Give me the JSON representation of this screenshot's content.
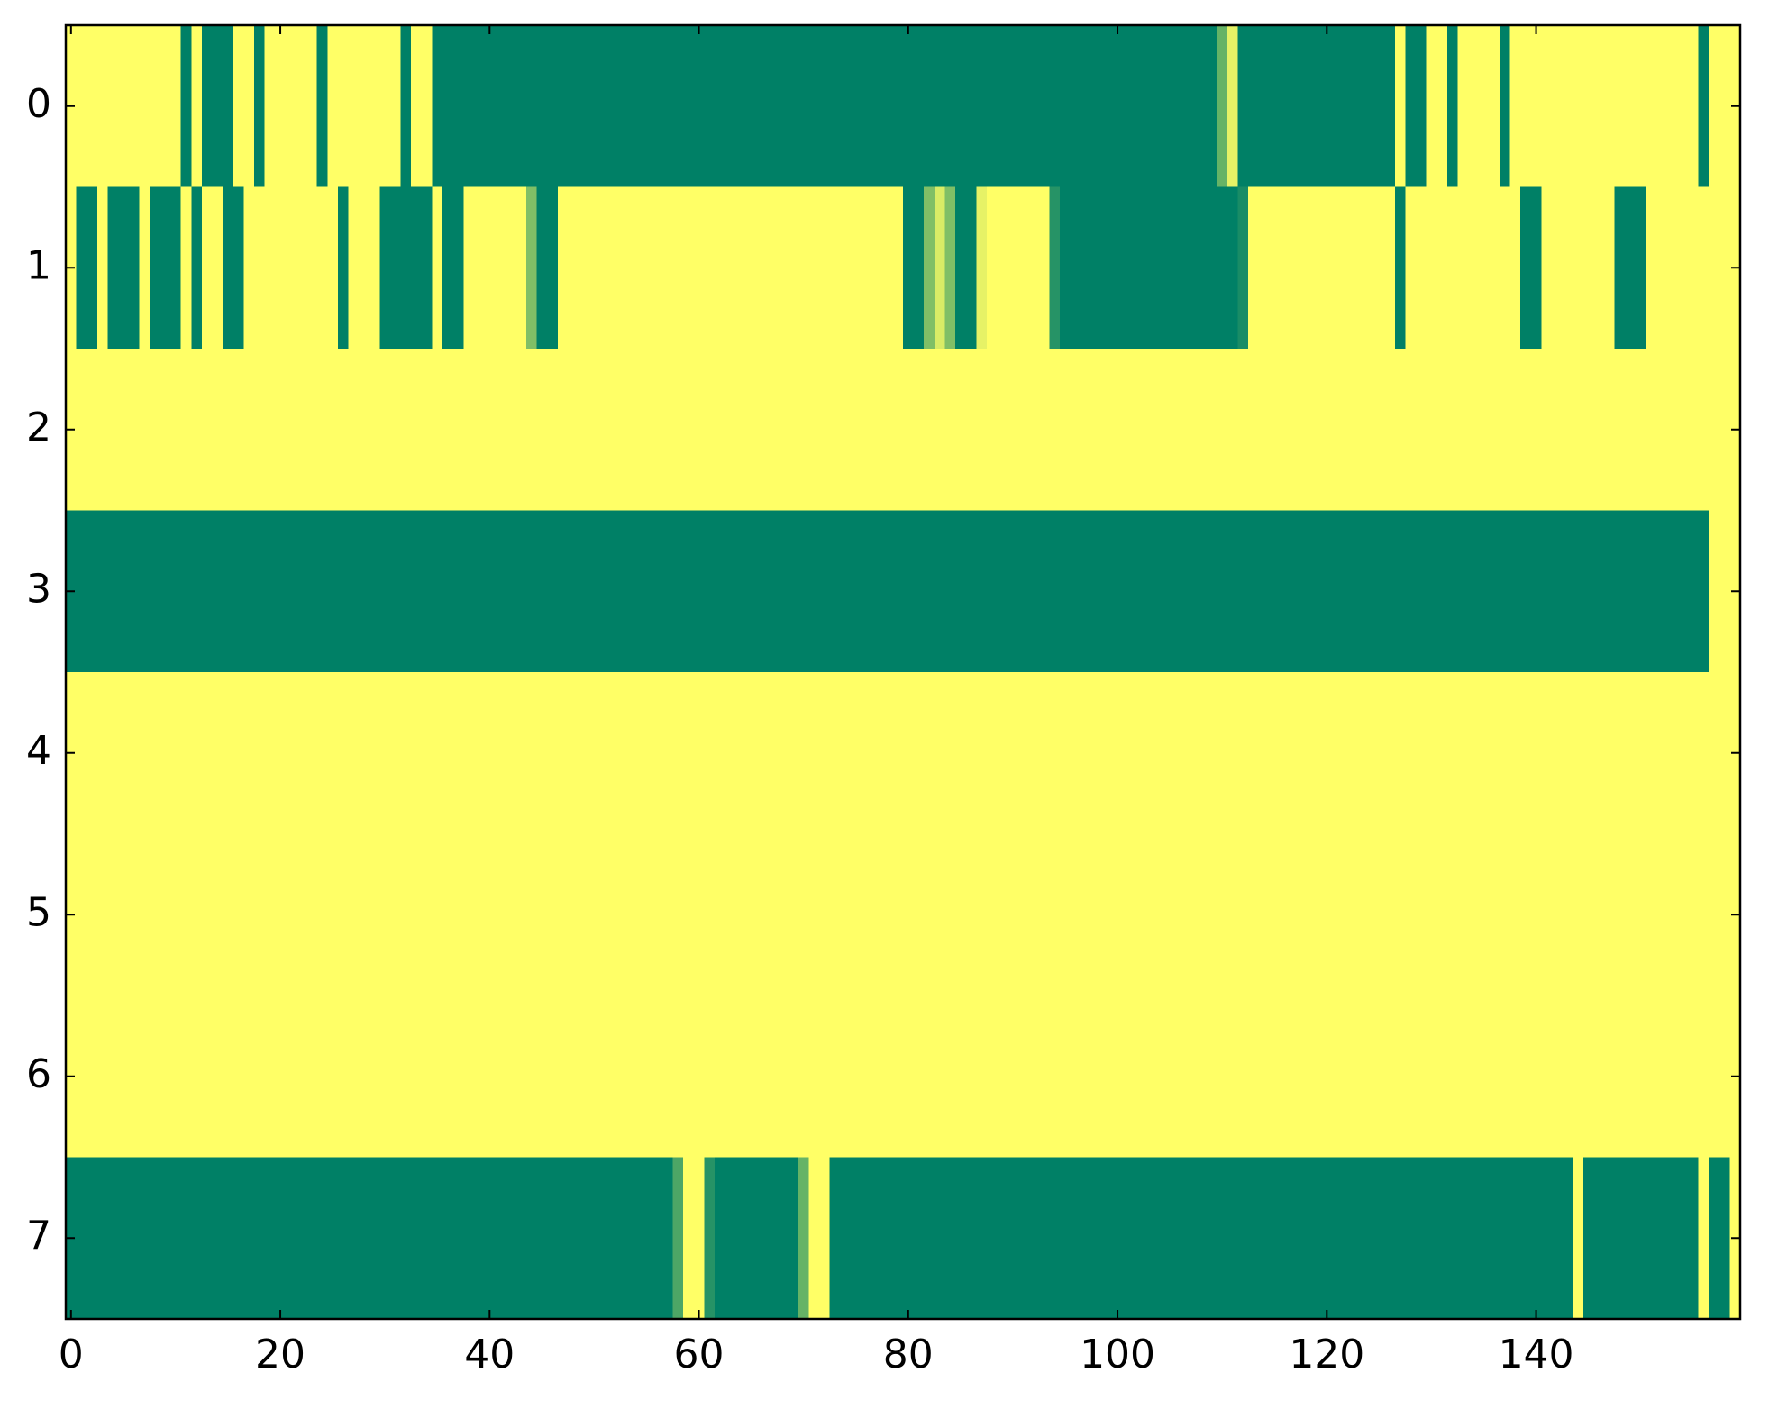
{
  "chart_data": {
    "type": "heatmap",
    "colormap": "summer_r",
    "xlim": [
      -0.5,
      159.5
    ],
    "ylim": [
      7.5,
      -0.5
    ],
    "xticks": [
      0,
      20,
      40,
      60,
      80,
      100,
      120,
      140
    ],
    "yticks": [
      0,
      1,
      2,
      3,
      4,
      5,
      6,
      7
    ],
    "z": [
      [
        0,
        0,
        0,
        0,
        0,
        0,
        0,
        0,
        0,
        0,
        0,
        1,
        0,
        1,
        1,
        1,
        0,
        0,
        1,
        0,
        0,
        0,
        0,
        0,
        1,
        0,
        0,
        0,
        0,
        0,
        0,
        0,
        1,
        0,
        0,
        1,
        1,
        1,
        1,
        1,
        1,
        1,
        1,
        1,
        1,
        1,
        1,
        1,
        1,
        1,
        1,
        1,
        1,
        1,
        1,
        1,
        1,
        1,
        1,
        1,
        1,
        1,
        1,
        1,
        1,
        1,
        1,
        1,
        1,
        1,
        1,
        1,
        1,
        1,
        1,
        1,
        1,
        1,
        1,
        1,
        1,
        1,
        1,
        1,
        1,
        1,
        1,
        1,
        1,
        1,
        1,
        1,
        1,
        1,
        1,
        1,
        1,
        1,
        1,
        1,
        1,
        1,
        1,
        1,
        1,
        1,
        1,
        1,
        1,
        1,
        0.6,
        0.1,
        1,
        1,
        1,
        1,
        1,
        1,
        1,
        1,
        1,
        1,
        1,
        1,
        1,
        1,
        1,
        0,
        1,
        1,
        0,
        0,
        1,
        0,
        0,
        0,
        0,
        1,
        0,
        0,
        0,
        0,
        0,
        0,
        0,
        0,
        0,
        0,
        0,
        0,
        0,
        0,
        0,
        0,
        0,
        0,
        1,
        0,
        0,
        0
      ],
      [
        0,
        1,
        1,
        0,
        1,
        1,
        1,
        0,
        1,
        1,
        1,
        0,
        1,
        0,
        0,
        1,
        1,
        0,
        0,
        0,
        0,
        0,
        0,
        0,
        0,
        0,
        1,
        0,
        0,
        0,
        1,
        1,
        1,
        1,
        1,
        0,
        1,
        1,
        0,
        0,
        0,
        0,
        0,
        0,
        0.5,
        1,
        1,
        0,
        0,
        0,
        0,
        0,
        0,
        0,
        0,
        0,
        0,
        0,
        0,
        0,
        0,
        0,
        0,
        0,
        0,
        0,
        0,
        0,
        0,
        0,
        0,
        0,
        0,
        0,
        0,
        0,
        0,
        0,
        0,
        0,
        1,
        1,
        0.5,
        0.15,
        0.5,
        1,
        1,
        0.1,
        0,
        0,
        0,
        0,
        0,
        0,
        0.85,
        1,
        1,
        1,
        1,
        1,
        1,
        1,
        1,
        1,
        1,
        1,
        1,
        1,
        1,
        1,
        1,
        1,
        0.9,
        0,
        0,
        0,
        0,
        0,
        0,
        0,
        0,
        0,
        0,
        0,
        0,
        0,
        0,
        1,
        0,
        0,
        0,
        0,
        0,
        0,
        0,
        0,
        0,
        0,
        0,
        1,
        1,
        0,
        0,
        0,
        0,
        0,
        0,
        0,
        1,
        1,
        1,
        0,
        0,
        0,
        0,
        0,
        0,
        0,
        0,
        0
      ],
      [
        0,
        0,
        0,
        0,
        0,
        0,
        0,
        0,
        0,
        0,
        0,
        0,
        0,
        0,
        0,
        0,
        0,
        0,
        0,
        0,
        0,
        0,
        0,
        0,
        0,
        0,
        0,
        0,
        0,
        0,
        0,
        0,
        0,
        0,
        0,
        0,
        0,
        0,
        0,
        0,
        0,
        0,
        0,
        0,
        0,
        0,
        0,
        0,
        0,
        0,
        0,
        0,
        0,
        0,
        0,
        0,
        0,
        0,
        0,
        0,
        0,
        0,
        0,
        0,
        0,
        0,
        0,
        0,
        0,
        0,
        0,
        0,
        0,
        0,
        0,
        0,
        0,
        0,
        0,
        0,
        0,
        0,
        0,
        0,
        0,
        0,
        0,
        0,
        0,
        0,
        0,
        0,
        0,
        0,
        0,
        0,
        0,
        0,
        0,
        0,
        0,
        0,
        0,
        0,
        0,
        0,
        0,
        0,
        0,
        0,
        0,
        0,
        0,
        0,
        0,
        0,
        0,
        0,
        0,
        0,
        0,
        0,
        0,
        0,
        0,
        0,
        0,
        0,
        0,
        0,
        0,
        0,
        0,
        0,
        0,
        0,
        0,
        0,
        0,
        0,
        0,
        0,
        0,
        0,
        0,
        0,
        0,
        0,
        0,
        0,
        0,
        0,
        0,
        0,
        0,
        0,
        0,
        0,
        0,
        0
      ],
      [
        1,
        1,
        1,
        1,
        1,
        1,
        1,
        1,
        1,
        1,
        1,
        1,
        1,
        1,
        1,
        1,
        1,
        1,
        1,
        1,
        1,
        1,
        1,
        1,
        1,
        1,
        1,
        1,
        1,
        1,
        1,
        1,
        1,
        1,
        1,
        1,
        1,
        1,
        1,
        1,
        1,
        1,
        1,
        1,
        1,
        1,
        1,
        1,
        1,
        1,
        1,
        1,
        1,
        1,
        1,
        1,
        1,
        1,
        1,
        1,
        1,
        1,
        1,
        1,
        1,
        1,
        1,
        1,
        1,
        1,
        1,
        1,
        1,
        1,
        1,
        1,
        1,
        1,
        1,
        1,
        1,
        1,
        1,
        1,
        1,
        1,
        1,
        1,
        1,
        1,
        1,
        1,
        1,
        1,
        1,
        1,
        1,
        1,
        1,
        1,
        1,
        1,
        1,
        1,
        1,
        1,
        1,
        1,
        1,
        1,
        1,
        1,
        1,
        1,
        1,
        1,
        1,
        1,
        1,
        1,
        1,
        1,
        1,
        1,
        1,
        1,
        1,
        1,
        1,
        1,
        1,
        1,
        1,
        1,
        1,
        1,
        1,
        1,
        1,
        1,
        1,
        1,
        1,
        1,
        1,
        1,
        1,
        1,
        1,
        1,
        1,
        1,
        1,
        1,
        1,
        1,
        1,
        0,
        0,
        0
      ],
      [
        0,
        0,
        0,
        0,
        0,
        0,
        0,
        0,
        0,
        0,
        0,
        0,
        0,
        0,
        0,
        0,
        0,
        0,
        0,
        0,
        0,
        0,
        0,
        0,
        0,
        0,
        0,
        0,
        0,
        0,
        0,
        0,
        0,
        0,
        0,
        0,
        0,
        0,
        0,
        0,
        0,
        0,
        0,
        0,
        0,
        0,
        0,
        0,
        0,
        0,
        0,
        0,
        0,
        0,
        0,
        0,
        0,
        0,
        0,
        0,
        0,
        0,
        0,
        0,
        0,
        0,
        0,
        0,
        0,
        0,
        0,
        0,
        0,
        0,
        0,
        0,
        0,
        0,
        0,
        0,
        0,
        0,
        0,
        0,
        0,
        0,
        0,
        0,
        0,
        0,
        0,
        0,
        0,
        0,
        0,
        0,
        0,
        0,
        0,
        0,
        0,
        0,
        0,
        0,
        0,
        0,
        0,
        0,
        0,
        0,
        0,
        0,
        0,
        0,
        0,
        0,
        0,
        0,
        0,
        0,
        0,
        0,
        0,
        0,
        0,
        0,
        0,
        0,
        0,
        0,
        0,
        0,
        0,
        0,
        0,
        0,
        0,
        0,
        0,
        0,
        0,
        0,
        0,
        0,
        0,
        0,
        0,
        0,
        0,
        0,
        0,
        0,
        0,
        0,
        0,
        0,
        0,
        0,
        0,
        0
      ],
      [
        0,
        0,
        0,
        0,
        0,
        0,
        0,
        0,
        0,
        0,
        0,
        0,
        0,
        0,
        0,
        0,
        0,
        0,
        0,
        0,
        0,
        0,
        0,
        0,
        0,
        0,
        0,
        0,
        0,
        0,
        0,
        0,
        0,
        0,
        0,
        0,
        0,
        0,
        0,
        0,
        0,
        0,
        0,
        0,
        0,
        0,
        0,
        0,
        0,
        0,
        0,
        0,
        0,
        0,
        0,
        0,
        0,
        0,
        0,
        0,
        0,
        0,
        0,
        0,
        0,
        0,
        0,
        0,
        0,
        0,
        0,
        0,
        0,
        0,
        0,
        0,
        0,
        0,
        0,
        0,
        0,
        0,
        0,
        0,
        0,
        0,
        0,
        0,
        0,
        0,
        0,
        0,
        0,
        0,
        0,
        0,
        0,
        0,
        0,
        0,
        0,
        0,
        0,
        0,
        0,
        0,
        0,
        0,
        0,
        0,
        0,
        0,
        0,
        0,
        0,
        0,
        0,
        0,
        0,
        0,
        0,
        0,
        0,
        0,
        0,
        0,
        0,
        0,
        0,
        0,
        0,
        0,
        0,
        0,
        0,
        0,
        0,
        0,
        0,
        0,
        0,
        0,
        0,
        0,
        0,
        0,
        0,
        0,
        0,
        0,
        0,
        0,
        0,
        0,
        0,
        0,
        0,
        0,
        0,
        0
      ],
      [
        0,
        0,
        0,
        0,
        0,
        0,
        0,
        0,
        0,
        0,
        0,
        0,
        0,
        0,
        0,
        0,
        0,
        0,
        0,
        0,
        0,
        0,
        0,
        0,
        0,
        0,
        0,
        0,
        0,
        0,
        0,
        0,
        0,
        0,
        0,
        0,
        0,
        0,
        0,
        0,
        0,
        0,
        0,
        0,
        0,
        0,
        0,
        0,
        0,
        0,
        0,
        0,
        0,
        0,
        0,
        0,
        0,
        0,
        0,
        0,
        0,
        0,
        0,
        0,
        0,
        0,
        0,
        0,
        0,
        0,
        0,
        0,
        0,
        0,
        0,
        0,
        0,
        0,
        0,
        0,
        0,
        0,
        0,
        0,
        0,
        0,
        0,
        0,
        0,
        0,
        0,
        0,
        0,
        0,
        0,
        0,
        0,
        0,
        0,
        0,
        0,
        0,
        0,
        0,
        0,
        0,
        0,
        0,
        0,
        0,
        0,
        0,
        0,
        0,
        0,
        0,
        0,
        0,
        0,
        0,
        0,
        0,
        0,
        0,
        0,
        0,
        0,
        0,
        0,
        0,
        0,
        0,
        0,
        0,
        0,
        0,
        0,
        0,
        0,
        0,
        0,
        0,
        0,
        0,
        0,
        0,
        0,
        0,
        0,
        0,
        0,
        0,
        0,
        0,
        0,
        0,
        0,
        0,
        0,
        0
      ],
      [
        1,
        1,
        1,
        1,
        1,
        1,
        1,
        1,
        1,
        1,
        1,
        1,
        1,
        1,
        1,
        1,
        1,
        1,
        1,
        1,
        1,
        1,
        1,
        1,
        1,
        1,
        1,
        1,
        1,
        1,
        1,
        1,
        1,
        1,
        1,
        1,
        1,
        1,
        1,
        1,
        1,
        1,
        1,
        1,
        1,
        1,
        1,
        1,
        1,
        1,
        1,
        1,
        1,
        1,
        1,
        1,
        1,
        1,
        0.7,
        0,
        0,
        0.85,
        1,
        1,
        1,
        1,
        1,
        1,
        1,
        1,
        0.6,
        0,
        0,
        1,
        1,
        1,
        1,
        1,
        1,
        1,
        1,
        1,
        1,
        1,
        1,
        1,
        1,
        1,
        1,
        1,
        1,
        1,
        1,
        1,
        1,
        1,
        1,
        1,
        1,
        1,
        1,
        1,
        1,
        1,
        1,
        1,
        1,
        1,
        1,
        1,
        1,
        1,
        1,
        1,
        1,
        1,
        1,
        1,
        1,
        1,
        1,
        1,
        1,
        1,
        1,
        1,
        1,
        1,
        1,
        1,
        1,
        1,
        1,
        1,
        1,
        1,
        1,
        1,
        1,
        1,
        1,
        1,
        1,
        1,
        0,
        1,
        1,
        1,
        1,
        1,
        1,
        1,
        1,
        1,
        1,
        1,
        0,
        1,
        1,
        0
      ]
    ]
  }
}
